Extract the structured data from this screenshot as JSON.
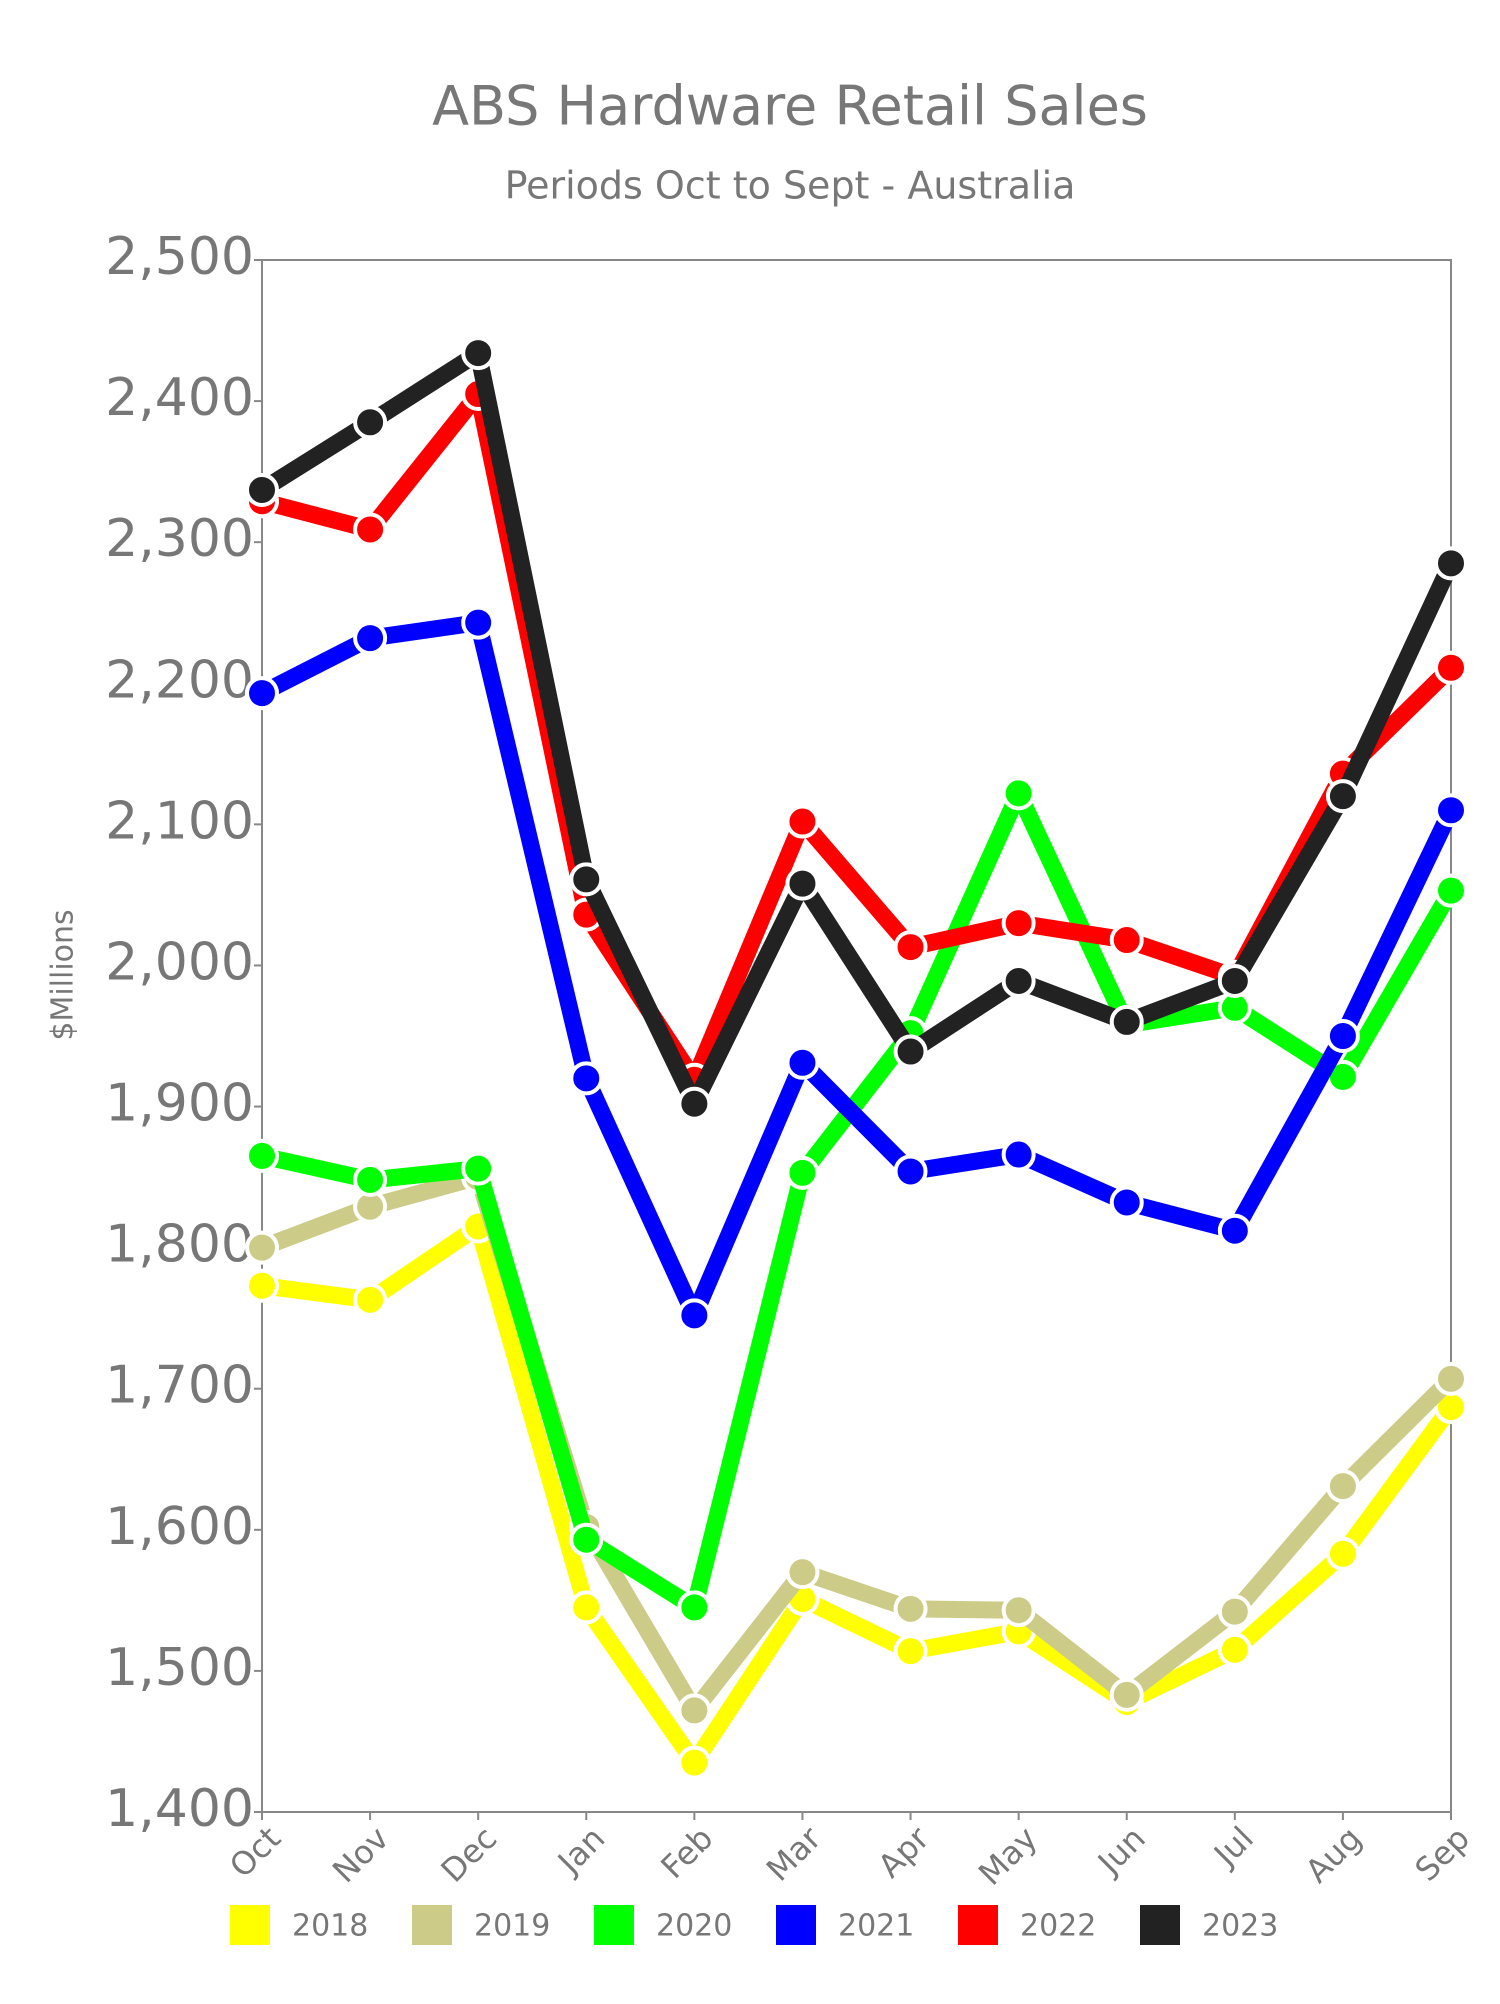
{
  "chart_data": {
    "type": "line",
    "title": "ABS Hardware Retail Sales",
    "subtitle": "Periods Oct to Sept - Australia",
    "y_label": "$Millions",
    "categories": [
      "Oct",
      "Nov",
      "Dec",
      "Jan",
      "Feb",
      "Mar",
      "Apr",
      "May",
      "Jun",
      "Jul",
      "Aug",
      "Sep"
    ],
    "series": [
      {
        "name": "2018",
        "color": "#ffff00",
        "values": [
          1773,
          1763,
          1815,
          1545,
          1435,
          1551,
          1514,
          1528,
          1478,
          1515,
          1583,
          1687
        ]
      },
      {
        "name": "2019",
        "color": "#cccc88",
        "values": [
          1800,
          1829,
          1850,
          1602,
          1472,
          1570,
          1544,
          1543,
          1483,
          1542,
          1631,
          1707
        ]
      },
      {
        "name": "2020",
        "color": "#00ff00",
        "values": [
          1865,
          1848,
          1856,
          1593,
          1545,
          1853,
          1952,
          2122,
          1958,
          1970,
          1921,
          2053
        ]
      },
      {
        "name": "2021",
        "color": "#0000ff",
        "values": [
          2193,
          2232,
          2243,
          1920,
          1752,
          1931,
          1854,
          1866,
          1832,
          1812,
          1950,
          2110
        ]
      },
      {
        "name": "2022",
        "color": "#ff0000",
        "values": [
          2329,
          2309,
          2405,
          2036,
          1919,
          2102,
          2013,
          2030,
          2018,
          1992,
          2136,
          2211
        ]
      },
      {
        "name": "2023",
        "color": "#222222",
        "values": [
          2337,
          2385,
          2434,
          2061,
          1902,
          2058,
          1939,
          1989,
          1960,
          1989,
          2120,
          2285
        ]
      }
    ],
    "ylim": [
      1400,
      2500
    ],
    "yticks": [
      {
        "value": 1400,
        "label": "1,400"
      },
      {
        "value": 1500,
        "label": "1,500"
      },
      {
        "value": 1600,
        "label": "1,600"
      },
      {
        "value": 1700,
        "label": "1,700"
      },
      {
        "value": 1800,
        "label": "1,800"
      },
      {
        "value": 1900,
        "label": "1,900"
      },
      {
        "value": 2000,
        "label": "2,000"
      },
      {
        "value": 2100,
        "label": "2,100"
      },
      {
        "value": 2200,
        "label": "2,200"
      },
      {
        "value": 2300,
        "label": "2,300"
      },
      {
        "value": 2400,
        "label": "2,400"
      },
      {
        "value": 2500,
        "label": "2,500"
      }
    ],
    "grid": false,
    "legend": "bottom"
  }
}
